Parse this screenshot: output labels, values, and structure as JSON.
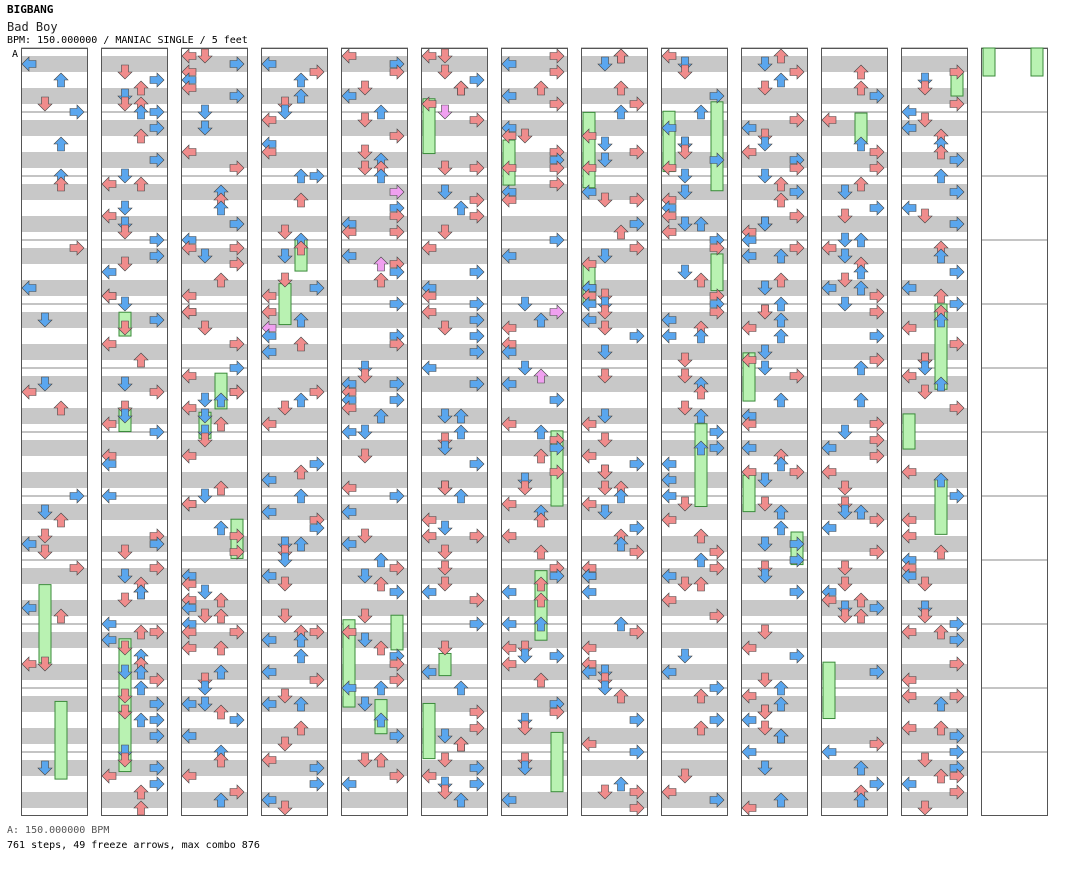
{
  "header": {
    "artist": "BIGBANG",
    "title": "Bad Boy",
    "info": "BPM: 150.000000 / MANIAC SINGLE / 5 feet",
    "bpm_marker": "A"
  },
  "footer": {
    "bpm_line": "A: 150.000000 BPM",
    "stats": "761 steps, 49 freeze arrows, max combo 876"
  },
  "colors": {
    "blue": "#5aa6ee",
    "red": "#f08c8c",
    "pink": "#f0a0f0",
    "freeze": "#b9f2b2",
    "freeze_edge": "#3a8a3a",
    "stripe": "#c8c8c8",
    "border": "#555555"
  },
  "chart_data": {
    "type": "step-chart",
    "columns": 13,
    "measures_per_column": 12,
    "lanes": [
      "left",
      "down",
      "up",
      "right"
    ],
    "steps": 761,
    "freeze_arrows": 49,
    "max_combo": 876,
    "bpm": 150
  }
}
